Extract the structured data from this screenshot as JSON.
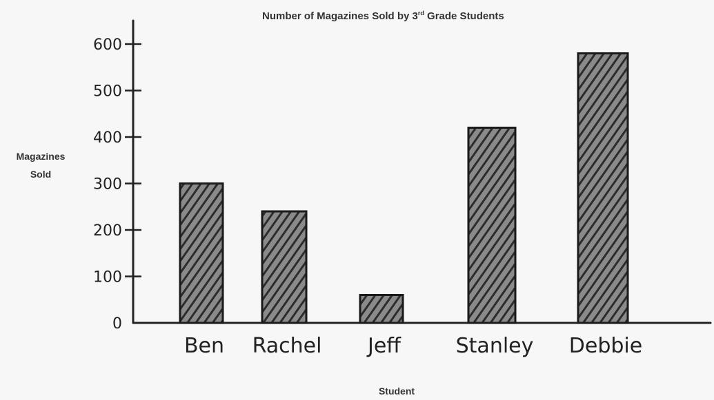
{
  "chart_data": {
    "type": "bar",
    "title": {
      "main": "Number of Magazines Sold by 3",
      "sup": "rd",
      "rest": " Grade Students"
    },
    "xlabel": "Student",
    "ylabel_line1": "Magazines",
    "ylabel_line2": "Sold",
    "categories": [
      "Ben",
      "Rachel",
      "Jeff",
      "Stanley",
      "Debbie"
    ],
    "values": [
      300,
      240,
      60,
      420,
      580
    ],
    "ylim": [
      0,
      600
    ],
    "yticks": [
      0,
      100,
      200,
      300,
      400,
      500,
      600
    ],
    "bar_fill": "#3a3a3a",
    "bar_stroke": "#1a1a1a"
  }
}
